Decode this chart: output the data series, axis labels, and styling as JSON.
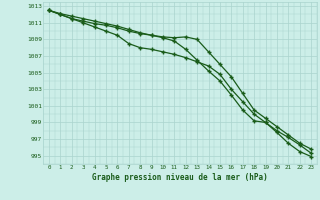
{
  "x": [
    0,
    1,
    2,
    3,
    4,
    5,
    6,
    7,
    8,
    9,
    10,
    11,
    12,
    13,
    14,
    15,
    16,
    17,
    18,
    19,
    20,
    21,
    22,
    23
  ],
  "line1": [
    1012.5,
    1012.1,
    1011.8,
    1011.5,
    1011.2,
    1010.9,
    1010.6,
    1010.2,
    1009.8,
    1009.5,
    1009.3,
    1009.2,
    1009.3,
    1009.0,
    1007.5,
    1006.0,
    1004.5,
    1002.5,
    1000.5,
    999.5,
    998.5,
    997.5,
    996.5,
    995.8
  ],
  "line2": [
    1012.5,
    1012.0,
    1011.5,
    1011.2,
    1010.9,
    1010.7,
    1010.4,
    1010.0,
    1009.7,
    1009.5,
    1009.2,
    1008.8,
    1007.8,
    1006.5,
    1005.2,
    1004.0,
    1002.3,
    1000.5,
    999.2,
    999.0,
    998.0,
    997.2,
    996.3,
    995.3
  ],
  "line3": [
    1012.5,
    1012.0,
    1011.5,
    1011.0,
    1010.5,
    1010.0,
    1009.5,
    1008.5,
    1008.0,
    1007.8,
    1007.5,
    1007.2,
    1006.8,
    1006.3,
    1005.8,
    1004.8,
    1003.0,
    1001.5,
    1000.0,
    999.0,
    997.8,
    996.5,
    995.5,
    994.9
  ],
  "line_color": "#1a5c1a",
  "marker": "+",
  "bg_color": "#cceee8",
  "grid_color": "#aad4ce",
  "text_color": "#1a5c1a",
  "xlabel": "Graphe pression niveau de la mer (hPa)",
  "ylim_min": 994.0,
  "ylim_max": 1013.5,
  "yticks": [
    995,
    997,
    999,
    1001,
    1003,
    1005,
    1007,
    1009,
    1011,
    1013
  ],
  "xlim_min": -0.5,
  "xlim_max": 23.5
}
